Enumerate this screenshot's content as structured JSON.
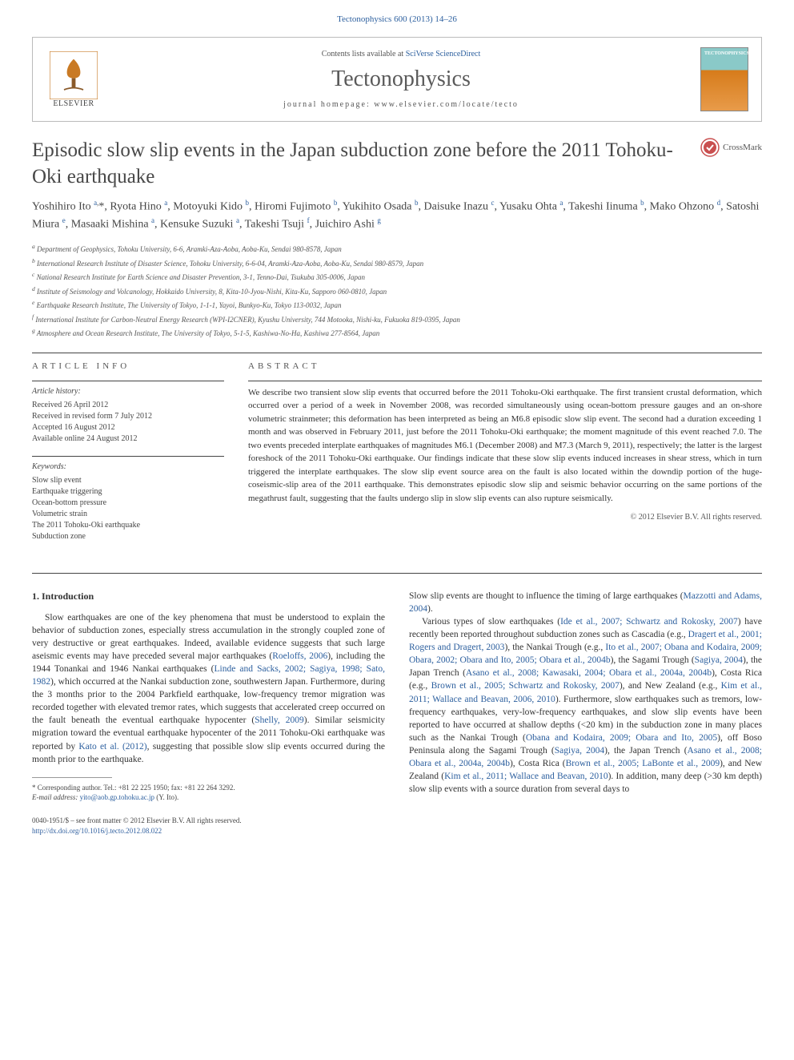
{
  "header": {
    "citation_link": "Tectonophysics 600 (2013) 14–26",
    "contents_pre": "Contents lists available at ",
    "contents_link": "SciVerse ScienceDirect",
    "journal": "Tectonophysics",
    "homepage": "journal homepage: www.elsevier.com/locate/tecto",
    "elsevier_label": "ELSEVIER",
    "cover_label": "TECTONOPHYSICS",
    "crossmark_label": "CrossMark"
  },
  "article": {
    "title": "Episodic slow slip events in the Japan subduction zone before the 2011 Tohoku-Oki earthquake"
  },
  "authors": {
    "list_html": "Yoshihiro Ito <sup><a>a</a>,</sup>*, Ryota Hino <sup><a>a</a></sup>, Motoyuki Kido <sup><a>b</a></sup>, Hiromi Fujimoto <sup><a>b</a></sup>, Yukihito Osada <sup><a>b</a></sup>, Daisuke Inazu <sup><a>c</a></sup>, Yusaku Ohta <sup><a>a</a></sup>, Takeshi Iinuma <sup><a>b</a></sup>, Mako Ohzono <sup><a>d</a></sup>, Satoshi Miura <sup><a>e</a></sup>, Masaaki Mishina <sup><a>a</a></sup>, Kensuke Suzuki <sup><a>a</a></sup>, Takeshi Tsuji <sup><a>f</a></sup>, Juichiro Ashi <sup><a>g</a></sup>"
  },
  "affiliations": {
    "a": "Department of Geophysics, Tohoku University, 6-6, Aramki-Aza-Aoba, Aoba-Ku, Sendai 980-8578, Japan",
    "b": "International Research Institute of Disaster Science, Tohoku University, 6-6-04, Aramki-Aza-Aoba, Aoba-Ku, Sendai 980-8579, Japan",
    "c": "National Research Institute for Earth Science and Disaster Prevention, 3-1, Tenno-Dai, Tsukuba 305-0006, Japan",
    "d": "Institute of Seismology and Volcanology, Hokkaido University, 8, Kita-10-Jyou-Nishi, Kita-Ku, Sapporo 060-0810, Japan",
    "e": "Earthquake Research Institute, The University of Tokyo, 1-1-1, Yayoi, Bunkyo-Ku, Tokyo 113-0032, Japan",
    "f": "International Institute for Carbon-Neutral Energy Research (WPI-I2CNER), Kyushu University, 744 Motooka, Nishi-ku, Fukuoka 819-0395, Japan",
    "g": "Atmosphere and Ocean Research Institute, The University of Tokyo, 5-1-5, Kashiwa-No-Ha, Kashiwa 277-8564, Japan"
  },
  "info": {
    "section_label": "ARTICLE INFO",
    "history_label": "Article history:",
    "received": "Received 26 April 2012",
    "revised": "Received in revised form 7 July 2012",
    "accepted": "Accepted 16 August 2012",
    "online": "Available online 24 August 2012",
    "keywords_label": "Keywords:",
    "kw1": "Slow slip event",
    "kw2": "Earthquake triggering",
    "kw3": "Ocean-bottom pressure",
    "kw4": "Volumetric strain",
    "kw5": "The 2011 Tohoku-Oki earthquake",
    "kw6": "Subduction zone"
  },
  "abstract": {
    "section_label": "ABSTRACT",
    "text": "We describe two transient slow slip events that occurred before the 2011 Tohoku-Oki earthquake. The first transient crustal deformation, which occurred over a period of a week in November 2008, was recorded simultaneously using ocean-bottom pressure gauges and an on-shore volumetric strainmeter; this deformation has been interpreted as being an M6.8 episodic slow slip event. The second had a duration exceeding 1 month and was observed in February 2011, just before the 2011 Tohoku-Oki earthquake; the moment magnitude of this event reached 7.0. The two events preceded interplate earthquakes of magnitudes M6.1 (December 2008) and M7.3 (March 9, 2011), respectively; the latter is the largest foreshock of the 2011 Tohoku-Oki earthquake. Our findings indicate that these slow slip events induced increases in shear stress, which in turn triggered the interplate earthquakes. The slow slip event source area on the fault is also located within the downdip portion of the huge-coseismic-slip area of the 2011 earthquake. This demonstrates episodic slow slip and seismic behavior occurring on the same portions of the megathrust fault, suggesting that the faults undergo slip in slow slip events can also rupture seismically.",
    "copyright": "© 2012 Elsevier B.V. All rights reserved."
  },
  "body": {
    "heading": "1. Introduction",
    "col1_html": "Slow earthquakes are one of the key phenomena that must be understood to explain the behavior of subduction zones, especially stress accumulation in the strongly coupled zone of very destructive or great earthquakes. Indeed, available evidence suggests that such large aseismic events may have preceded several major earthquakes (<a>Roeloffs, 2006</a>), including the 1944 Tonankai and 1946 Nankai earthquakes (<a>Linde and Sacks, 2002; Sagiya, 1998; Sato, 1982</a>), which occurred at the Nankai subduction zone, southwestern Japan. Furthermore, during the 3 months prior to the 2004 Parkfield earthquake, low-frequency tremor migration was recorded together with elevated tremor rates, which suggests that accelerated creep occurred on the fault beneath the eventual earthquake hypocenter (<a>Shelly, 2009</a>). Similar seismicity migration toward the eventual earthquake hypocenter of the 2011 Tohoku-Oki earthquake was reported by <a>Kato et al. (2012)</a>, suggesting that possible slow slip events occurred during the month prior to the earthquake.",
    "col2_html": "Slow slip events are thought to influence the timing of large earthquakes (<a>Mazzotti and Adams, 2004</a>).</p><p>Various types of slow earthquakes (<a>Ide et al., 2007; Schwartz and Rokosky, 2007</a>) have recently been reported throughout subduction zones such as Cascadia (e.g., <a>Dragert et al., 2001; Rogers and Dragert, 2003</a>), the Nankai Trough (e.g., <a>Ito et al., 2007; Obana and Kodaira, 2009; Obara, 2002; Obara and Ito, 2005; Obara et al., 2004b</a>), the Sagami Trough (<a>Sagiya, 2004</a>), the Japan Trench (<a>Asano et al., 2008; Kawasaki, 2004; Obara et al., 2004a, 2004b</a>), Costa Rica (e.g., <a>Brown et al., 2005; Schwartz and Rokosky, 2007</a>), and New Zealand (e.g., <a>Kim et al., 2011; Wallace and Beavan, 2006, 2010</a>). Furthermore, slow earthquakes such as tremors, low-frequency earthquakes, very-low-frequency earthquakes, and slow slip events have been reported to have occurred at shallow depths (&lt;20 km) in the subduction zone in many places such as the Nankai Trough (<a>Obana and Kodaira, 2009; Obara and Ito, 2005</a>), off Boso Peninsula along the Sagami Trough (<a>Sagiya, 2004</a>), the Japan Trench (<a>Asano et al., 2008; Obara et al., 2004a, 2004b</a>), Costa Rica (<a>Brown et al., 2005; LaBonte et al., 2009</a>), and New Zealand (<a>Kim et al., 2011; Wallace and Beavan, 2010</a>). In addition, many deep (&gt;30 km depth) slow slip events with a source duration from several days to"
  },
  "footnote": {
    "corresp": "* Corresponding author. Tel.: +81 22 225 1950; fax: +81 22 264 3292.",
    "email_label": "E-mail address: ",
    "email": "yito@aob.gp.tohoku.ac.jp",
    "email_post": " (Y. Ito)."
  },
  "bottom": {
    "line1": "0040-1951/$ – see front matter © 2012 Elsevier B.V. All rights reserved.",
    "doi": "http://dx.doi.org/10.1016/j.tecto.2012.08.022"
  },
  "colors": {
    "link": "#2c5f9e",
    "text": "#333333",
    "heading": "#484848",
    "muted": "#555555",
    "orange": "#e68a2e",
    "border": "#bbbbbb"
  }
}
